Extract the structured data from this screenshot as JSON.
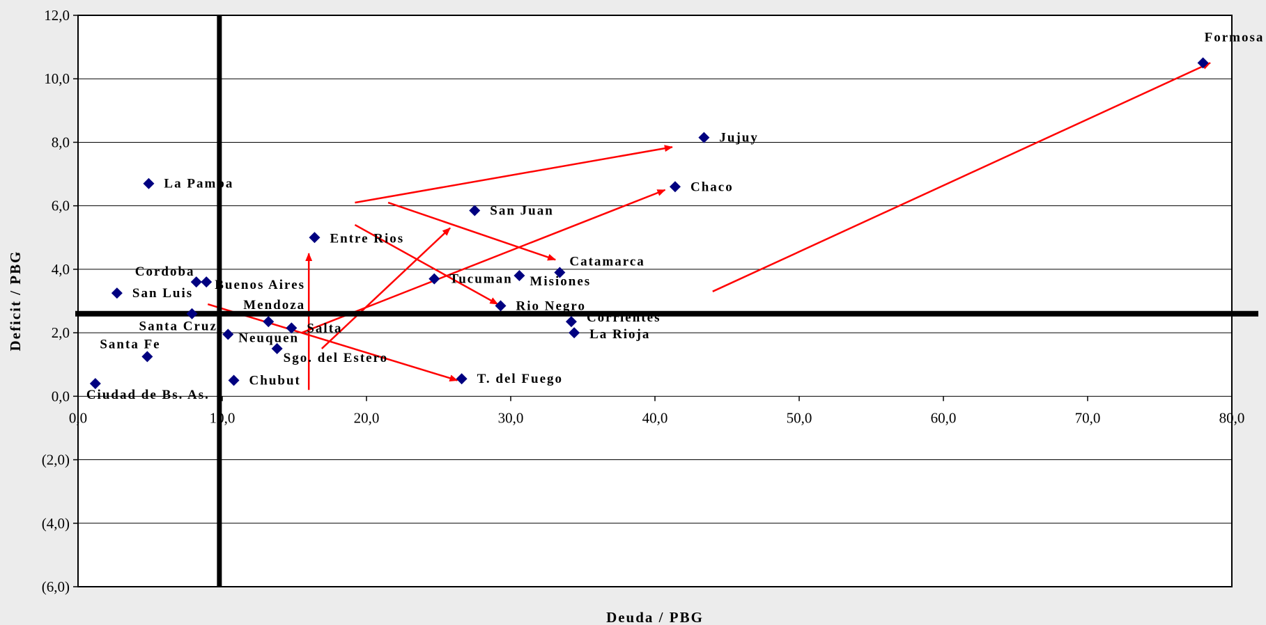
{
  "chart_data": {
    "type": "scatter",
    "xlabel": "Deuda / PBG",
    "ylabel": "Deficit / PBG",
    "xlim": [
      0,
      80
    ],
    "ylim": [
      -6,
      12
    ],
    "x_ticks": [
      "0,0",
      "10,0",
      "20,0",
      "30,0",
      "40,0",
      "50,0",
      "60,0",
      "70,0",
      "80,0"
    ],
    "y_ticks": [
      "(6,0)",
      "(4,0)",
      "(2,0)",
      "0,0",
      "2,0",
      "4,0",
      "6,0",
      "8,0",
      "10,0",
      "12,0"
    ],
    "grid": "horizontal",
    "marker_color": "#000080",
    "arrow_color": "#ff0000",
    "reference_lines": {
      "x": 9.8,
      "y": 2.6
    },
    "points": [
      {
        "name": "Ciudad de Bs. As.",
        "x": 1.2,
        "y": 0.4
      },
      {
        "name": "Santa Fe",
        "x": 4.8,
        "y": 1.25
      },
      {
        "name": "La Pampa",
        "x": 4.9,
        "y": 6.7
      },
      {
        "name": "San Luis",
        "x": 2.7,
        "y": 3.25
      },
      {
        "name": "Cordoba",
        "x": 8.2,
        "y": 3.6
      },
      {
        "name": "Buenos Aires",
        "x": 8.9,
        "y": 3.6
      },
      {
        "name": "Santa Cruz",
        "x": 7.9,
        "y": 2.6
      },
      {
        "name": "Neuquen",
        "x": 10.4,
        "y": 1.95
      },
      {
        "name": "Chubut",
        "x": 10.8,
        "y": 0.5
      },
      {
        "name": "Mendoza",
        "x": 13.2,
        "y": 2.35
      },
      {
        "name": "Salta",
        "x": 14.8,
        "y": 2.15
      },
      {
        "name": "Sgo. del Estero",
        "x": 13.8,
        "y": 1.5
      },
      {
        "name": "Entre Rios",
        "x": 16.4,
        "y": 5.0
      },
      {
        "name": "Tucuman",
        "x": 24.7,
        "y": 3.7
      },
      {
        "name": "San Juan",
        "x": 27.5,
        "y": 5.85
      },
      {
        "name": "T. del Fuego",
        "x": 26.6,
        "y": 0.55
      },
      {
        "name": "Rio Negro",
        "x": 29.3,
        "y": 2.85
      },
      {
        "name": "Misiones",
        "x": 30.6,
        "y": 3.8
      },
      {
        "name": "Catamarca",
        "x": 33.4,
        "y": 3.9
      },
      {
        "name": "Corrientes",
        "x": 34.2,
        "y": 2.35
      },
      {
        "name": "La Rioja",
        "x": 34.4,
        "y": 2.0
      },
      {
        "name": "Chaco",
        "x": 41.4,
        "y": 6.6
      },
      {
        "name": "Jujuy",
        "x": 43.4,
        "y": 8.15
      },
      {
        "name": "Formosa",
        "x": 78.0,
        "y": 10.5
      }
    ],
    "arrows": [
      {
        "from": [
          19.2,
          6.1
        ],
        "to": [
          41.2,
          7.85
        ]
      },
      {
        "from": [
          21.5,
          6.1
        ],
        "to": [
          33.1,
          4.3
        ]
      },
      {
        "from": [
          19.2,
          5.4
        ],
        "to": [
          29.1,
          2.9
        ]
      },
      {
        "from": [
          16.9,
          1.5
        ],
        "to": [
          25.8,
          5.3
        ]
      },
      {
        "from": [
          15.5,
          2.0
        ],
        "to": [
          40.7,
          6.5
        ]
      },
      {
        "from": [
          9.0,
          2.9
        ],
        "to": [
          26.3,
          0.5
        ]
      },
      {
        "from": [
          16.0,
          0.2
        ],
        "to": [
          16.0,
          4.5
        ]
      },
      {
        "from": [
          44.0,
          3.3
        ],
        "to": [
          78.5,
          10.5
        ]
      }
    ]
  }
}
